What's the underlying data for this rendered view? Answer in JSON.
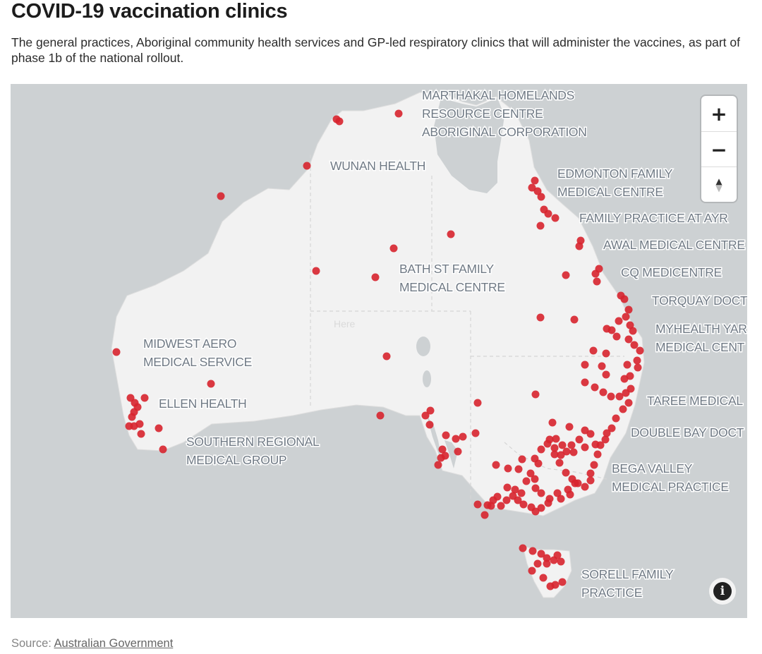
{
  "title": "COVID-19 vaccination clinics",
  "subtitle": "The general practices, Aboriginal community health services and GP-led respiratory clinics that will administer the vaccines, as part of phase 1b of the national rollout.",
  "map": {
    "region": "Australia",
    "colors": {
      "ocean": "#cdd1d3",
      "land": "#f2f2f2",
      "border": "#d9d9d9",
      "marker": "#d7232d"
    },
    "labels": [
      "MARTHAKAL HOMELANDS",
      "RESOURCE CENTRE",
      "ABORIGINAL CORPORATION",
      "WUNAN HEALTH",
      "EDMONTON FAMILY",
      "MEDICAL CENTRE",
      "FAMILY PRACTICE AT AYR",
      "AWAL MEDICAL CENTRE",
      "BATH ST FAMILY",
      "MEDICAL CENTRE",
      "CQ MEDICENTRE",
      "TORQUAY DOCT",
      "MYHEALTH YAR",
      "MEDICAL CENT",
      "MIDWEST AERO",
      "MEDICAL SERVICE",
      "ELLEN HEALTH",
      "TAREE MEDICAL",
      "DOUBLE BAY DOCT",
      "SOUTHERN REGIONAL",
      "MEDICAL GROUP",
      "BEGA VALLEY",
      "MEDICAL PRACTICE",
      "SORELL FAMILY",
      "PRACTICE"
    ],
    "watermark": "Here",
    "controls": {
      "zoom_in": "+",
      "zoom_out": "−",
      "compass_north": "▲",
      "compass_south": "▼",
      "info": "i"
    }
  },
  "source": {
    "label": "Source: ",
    "link": "Australian Government"
  }
}
